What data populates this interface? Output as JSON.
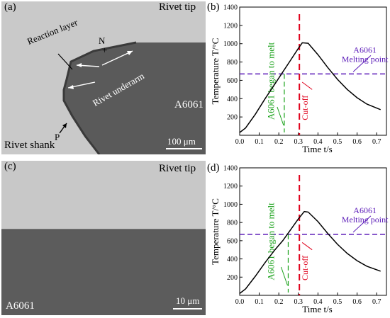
{
  "panel_a": {
    "label": "(a)",
    "rivet_tip": "Rivet tip",
    "reaction_layer": "Reaction layer",
    "point_n": "N",
    "rivet_underarm": "Rivet underarm",
    "material": "A6061",
    "point_p": "P",
    "rivet_shank": "Rivet shank",
    "scale_bar": "100 μm"
  },
  "panel_c": {
    "label": "(c)",
    "rivet_tip": "Rivet tip",
    "material": "A6061",
    "scale_bar": "10 μm"
  },
  "chart_data": [
    {
      "type": "line",
      "panel_label": "(b)",
      "ylabel": "Temperature  T/°C",
      "xlabel": "Time  t/s",
      "xlim": [
        0.0,
        0.75
      ],
      "ylim": [
        0,
        1400
      ],
      "x_ticks": [
        "0.0",
        "0.1",
        "0.2",
        "0.3",
        "0.4",
        "0.5",
        "0.6",
        "0.7"
      ],
      "y_ticks": [
        "200",
        "400",
        "600",
        "800",
        "1000",
        "1200",
        "1400"
      ],
      "x": [
        0.0,
        0.03,
        0.08,
        0.13,
        0.18,
        0.22,
        0.26,
        0.3,
        0.32,
        0.35,
        0.4,
        0.45,
        0.5,
        0.55,
        0.6,
        0.65,
        0.72
      ],
      "y": [
        30,
        80,
        230,
        400,
        560,
        690,
        820,
        950,
        1010,
        1005,
        880,
        740,
        610,
        500,
        410,
        340,
        280
      ],
      "melting_point": 670,
      "melt_start_time": 0.228,
      "cutoff_time": 0.305,
      "annotations": {
        "melting": "A6061\nMelting point",
        "began_to_melt": "A6061 began to melt",
        "cutoff": "Cut-off"
      },
      "colors": {
        "curve": "#000000",
        "melting": "#5b1bb8",
        "began": "#1aa11a",
        "cutoff": "#e0001b"
      }
    },
    {
      "type": "line",
      "panel_label": "(d)",
      "ylabel": "Temperature  T/°C",
      "xlabel": "Time  t/s",
      "xlim": [
        0.0,
        0.75
      ],
      "ylim": [
        0,
        1400
      ],
      "x_ticks": [
        "0.0",
        "0.1",
        "0.2",
        "0.3",
        "0.4",
        "0.5",
        "0.6",
        "0.7"
      ],
      "y_ticks": [
        "200",
        "400",
        "600",
        "800",
        "1000",
        "1200",
        "1400"
      ],
      "x": [
        0.0,
        0.03,
        0.08,
        0.13,
        0.18,
        0.22,
        0.26,
        0.3,
        0.33,
        0.35,
        0.4,
        0.45,
        0.5,
        0.55,
        0.6,
        0.65,
        0.72
      ],
      "y": [
        20,
        70,
        210,
        360,
        500,
        600,
        720,
        840,
        920,
        915,
        810,
        680,
        560,
        460,
        380,
        320,
        265
      ],
      "melting_point": 670,
      "melt_start_time": 0.248,
      "cutoff_time": 0.305,
      "annotations": {
        "melting": "A6061\nMelting point",
        "began_to_melt": "A6061 began to melt",
        "cutoff": "Cut-off"
      },
      "colors": {
        "curve": "#000000",
        "melting": "#5b1bb8",
        "began": "#1aa11a",
        "cutoff": "#e0001b"
      }
    }
  ]
}
